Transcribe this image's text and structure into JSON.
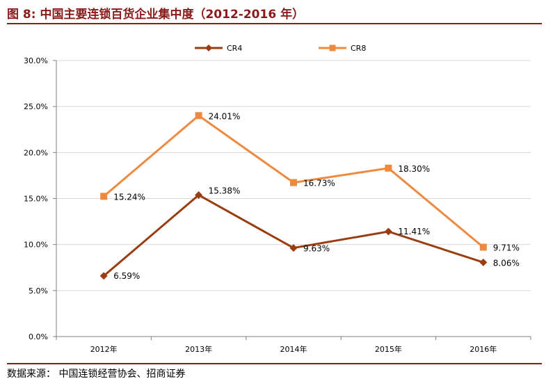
{
  "header": {
    "title": "图 8:  中国主要连锁百货企业集中度（2012-2016 年）"
  },
  "footer": {
    "source": "数据来源：  中国连锁经营协会、招商证券"
  },
  "colors": {
    "accent": "#8B1A1A",
    "cr4": "#9A3D10",
    "cr8": "#EE8A3F",
    "grid": "#D9D9D9",
    "axis": "#808080"
  },
  "chart_data": {
    "type": "line",
    "title": "",
    "xlabel": "",
    "ylabel": "",
    "categories": [
      "2012年",
      "2013年",
      "2014年",
      "2015年",
      "2016年"
    ],
    "ylim": [
      0,
      30
    ],
    "yticks": [
      0,
      5,
      10,
      15,
      20,
      25,
      30
    ],
    "ytick_labels": [
      "0.0%",
      "5.0%",
      "10.0%",
      "15.0%",
      "20.0%",
      "25.0%",
      "30.0%"
    ],
    "grid": true,
    "legend_position": "top",
    "series": [
      {
        "name": "CR4",
        "marker": "diamond",
        "color": "#9A3D10",
        "values": [
          6.59,
          15.38,
          9.63,
          11.41,
          8.06
        ],
        "labels": [
          "6.59%",
          "15.38%",
          "9.63%",
          "11.41%",
          "8.06%"
        ]
      },
      {
        "name": "CR8",
        "marker": "square",
        "color": "#EE8A3F",
        "values": [
          15.24,
          24.01,
          16.73,
          18.3,
          9.71
        ],
        "labels": [
          "15.24%",
          "24.01%",
          "16.73%",
          "18.30%",
          "9.71%"
        ]
      }
    ]
  }
}
